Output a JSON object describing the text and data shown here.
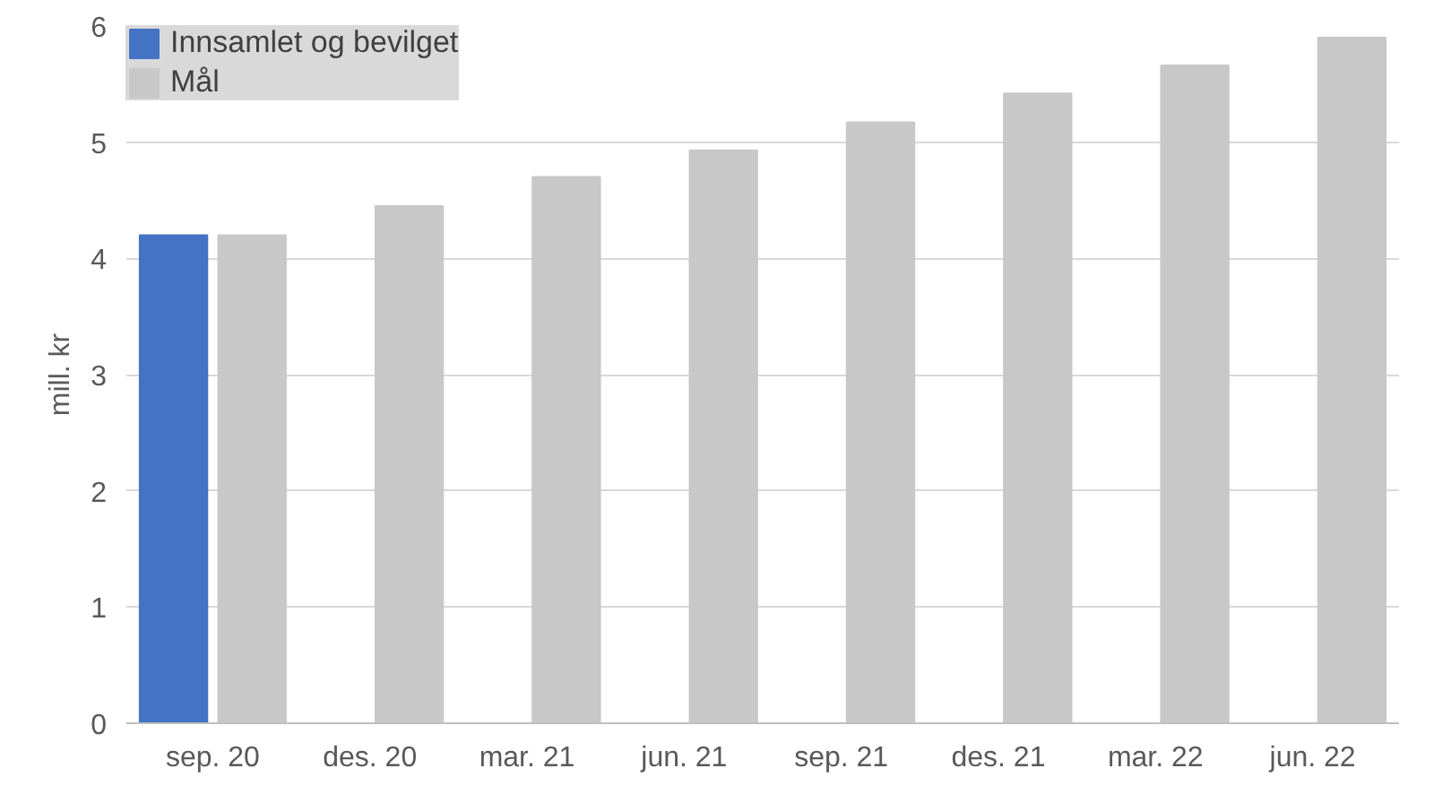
{
  "chart_data": {
    "type": "bar",
    "ylabel": "mill. kr",
    "categories": [
      "sep. 20",
      "des. 20",
      "mar. 21",
      "jun. 21",
      "sep. 21",
      "des. 21",
      "mar. 22",
      "jun. 22"
    ],
    "series": [
      {
        "name": "Innsamlet og bevilget",
        "color": "#4472c4",
        "values": [
          4.2,
          null,
          null,
          null,
          null,
          null,
          null,
          null
        ]
      },
      {
        "name": "Mål",
        "color": "#c8c8c8",
        "values": [
          4.2,
          4.45,
          4.7,
          4.93,
          5.17,
          5.42,
          5.66,
          5.9
        ]
      }
    ],
    "ylim": [
      0,
      6
    ],
    "yticks": [
      0,
      1,
      2,
      3,
      4,
      5,
      6
    ],
    "grid": "y",
    "legend": "top left"
  }
}
